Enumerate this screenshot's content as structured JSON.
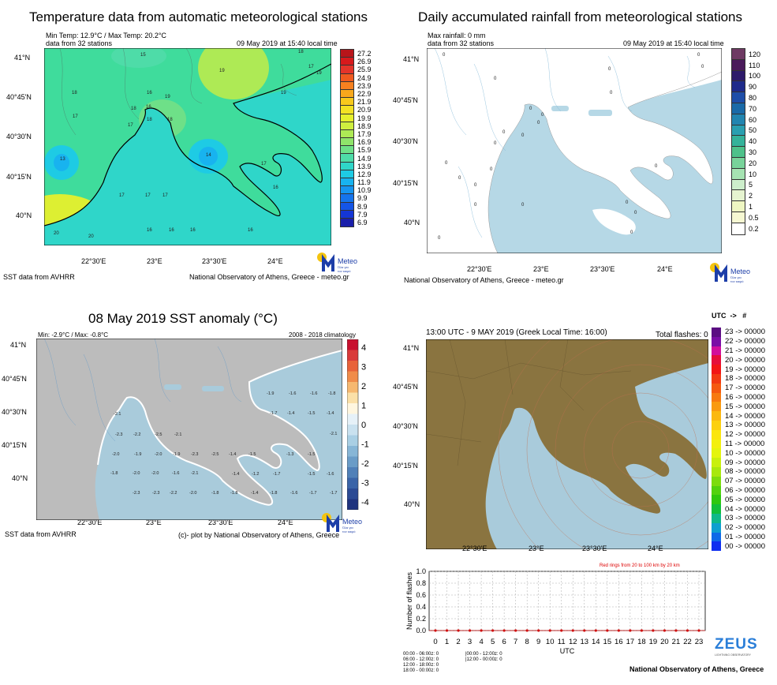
{
  "colors": {
    "sea_light": "#b6d8e6",
    "land_gray": "#bcbcbc",
    "land_brown": "#8a7440",
    "sea_gray": "#a9cbdb",
    "meteo_blue": "#1d3ea8",
    "meteo_yellow": "#f4c40f"
  },
  "panel1": {
    "title": "Temperature data from automatic meteorological stations",
    "info1": "Min Temp: 12.9°C / Max Temp: 20.2°C",
    "info2": "data from 32 stations",
    "datetime": "09 May 2019 at 15:40 local time",
    "lat_labels": [
      "41°N",
      "40°45'N",
      "40°30'N",
      "40°15'N",
      "40°N"
    ],
    "lon_labels": [
      "22°30'E",
      "23°E",
      "23°30'E",
      "24°E"
    ],
    "colorbar": [
      "27.2",
      "26.9",
      "25.9",
      "24.9",
      "23.9",
      "22.9",
      "21.9",
      "20.9",
      "19.9",
      "18.9",
      "17.9",
      "16.9",
      "15.9",
      "14.9",
      "13.9",
      "12.9",
      "11.9",
      "10.9",
      "9.9",
      "8.9",
      "7.9",
      "6.9"
    ],
    "colorbar_colors": [
      "#b8151a",
      "#d7191c",
      "#e4342a",
      "#f05a1f",
      "#f7811f",
      "#f9a81c",
      "#f8c91c",
      "#f3e123",
      "#e6ef2c",
      "#cfef3f",
      "#aeea55",
      "#8fe46a",
      "#6ee088",
      "#4edca8",
      "#2fd6c9",
      "#1ecbe4",
      "#18b3ef",
      "#1695f0",
      "#1574ec",
      "#1455e6",
      "#1436d6",
      "#1a1faa"
    ],
    "station_values": [
      "15",
      "19",
      "18",
      "17",
      "18",
      "16",
      "17",
      "19",
      "13",
      "18",
      "16",
      "18",
      "17",
      "18",
      "14",
      "17",
      "17",
      "17",
      "16",
      "16",
      "16",
      "20",
      "20",
      "19",
      "19",
      "17",
      "16",
      "16"
    ],
    "footer_left": "SST data from AVHRR",
    "footer_right": "National Observatory of Athens, Greece - meteo.gr"
  },
  "panel2": {
    "title": "Daily accumulated rainfall from meteorological stations",
    "info1": "Max rainfall: 0 mm",
    "info2": "data from 32 stations",
    "datetime": "09 May 2019 at 15:40 local time",
    "station_values": [
      "0",
      "0",
      "0",
      "0",
      "0",
      "0",
      "0",
      "0",
      "0",
      "0",
      "0",
      "0",
      "0",
      "0",
      "0",
      "0",
      "0",
      "0",
      "0",
      "0",
      "0",
      "0",
      "0"
    ],
    "lat_labels": [
      "41°N",
      "40°45'N",
      "40°30'N",
      "40°15'N",
      "40°N"
    ],
    "lon_labels": [
      "22°30'E",
      "23°E",
      "23°30'E",
      "24°E"
    ],
    "colorbar": [
      "120",
      "110",
      "100",
      "90",
      "80",
      "70",
      "60",
      "50",
      "40",
      "30",
      "20",
      "10",
      "5",
      "2",
      "1",
      "0.5",
      "0.2"
    ],
    "colorbar_colors": [
      "#6e3a63",
      "#4a1a5a",
      "#2d1a6a",
      "#1f2a8a",
      "#1e4ea8",
      "#1a6aa8",
      "#2285b0",
      "#2a9fb0",
      "#35b29a",
      "#4ec18a",
      "#78d39a",
      "#a6e3b2",
      "#cdeecb",
      "#e6f4d0",
      "#eef6c2",
      "#f6f8d2",
      "#ffffff"
    ],
    "footer_right": "National Observatory of Athens, Greece - meteo.gr"
  },
  "panel3": {
    "title": "08 May 2019 SST anomaly (°C)",
    "info_left": "Min: -2.9°C / Max: -0.8°C",
    "info_right": "2008 - 2018 climatology",
    "lat_labels": [
      "41°N",
      "40°45'N",
      "40°30'N",
      "40°15'N",
      "40°N"
    ],
    "lon_labels": [
      "22°30'E",
      "23°E",
      "23°30'E",
      "24°E"
    ],
    "colorbar": [
      "4",
      "3",
      "2",
      "1",
      "0",
      "-1",
      "-2",
      "-3",
      "-4"
    ],
    "colorbar_colors": [
      "#c8102e",
      "#d93a3a",
      "#e8623a",
      "#f08c4a",
      "#f6b870",
      "#fbe0a8",
      "#fff6df",
      "#e6f1f8",
      "#c9e1ef",
      "#a9cfe4",
      "#87b6d6",
      "#6a9cc7",
      "#5080b8",
      "#3a64a8",
      "#2b4a94",
      "#1f337e"
    ],
    "anomaly_values": [
      "-1.9",
      "-1.6",
      "-1.6",
      "-1.8",
      "-1.7",
      "-1.4",
      "-1.5",
      "-1.4",
      "-2.1",
      "-2.1",
      "-2.3",
      "-2.2",
      "-2.5",
      "-2.1",
      "-2.0",
      "-1.9",
      "-2.0",
      "-1.9",
      "-2.3",
      "-2.5",
      "-1.4",
      "-1.5",
      "-1.3",
      "-1.5",
      "-1.8",
      "-2.0",
      "-2.0",
      "-1.6",
      "-2.1",
      "-1.4",
      "-1.2",
      "-1.7",
      "-1.5",
      "-1.6",
      "-1.7",
      "-2.3",
      "-2.3",
      "-2.2",
      "-2.0",
      "-1.8",
      "-1.8",
      "-1.4",
      "-1.8",
      "-1.6",
      "-1.7"
    ],
    "footer_left": "SST data from AVHRR",
    "footer_right": "(c)- plot by National Observatory of Athens, Greece"
  },
  "panel4": {
    "header_left": "13:00 UTC -  9  MAY 2019 (Greek Local Time: 16:00)",
    "header_right": "Total flashes: 0",
    "utc_header": "UTC",
    "utc_arrow": "->",
    "utc_hash": "#",
    "lat_labels": [
      "41°N",
      "40°45'N",
      "40°30'N",
      "40°15'N",
      "40°N"
    ],
    "lon_labels": [
      "22°30'E",
      "23°E",
      "23°30'E",
      "24°E"
    ],
    "legend": [
      "23 -> 00000",
      "22 -> 00000",
      "21 -> 00000",
      "20 -> 00000",
      "19 -> 00000",
      "18 -> 00000",
      "17 -> 00000",
      "16 -> 00000",
      "15 -> 00000",
      "14 -> 00000",
      "13 -> 00000",
      "12 -> 00000",
      "11 -> 00000",
      "10 -> 00000",
      "09 -> 00000",
      "08 -> 00000",
      "07 -> 00000",
      "06 -> 00000",
      "05 -> 00000",
      "04 -> 00000",
      "03 -> 00000",
      "02 -> 00000",
      "01 -> 00000",
      "00 -> 00000"
    ],
    "legend_colors": [
      "#5a0e82",
      "#7a0ea6",
      "#d10f9c",
      "#e60e3a",
      "#f21515",
      "#f23a12",
      "#f55a10",
      "#f77a10",
      "#f99a10",
      "#fbb810",
      "#fcd00f",
      "#fbe60f",
      "#f3f00f",
      "#e4f50f",
      "#c8f00f",
      "#a8e80f",
      "#7cdc0f",
      "#52d20f",
      "#2ec80f",
      "#12bf3a",
      "#0fb88a",
      "#0f9fd0",
      "#0f6ae8",
      "#0f2ef0"
    ],
    "ring_note": "Red rings from 20 to 100 km by 20 km",
    "zeus_brand": "ZEUS",
    "zeus_sub": "LIGHTNING OBSERVATORY",
    "stats": [
      "00:00 - 06:00z: 0",
      "06:00 - 12:00z: 0",
      "12:00 - 18:00z: 0",
      "18:00 - 00:00z: 0",
      "|00:00 - 12:00z: 0",
      "|12:00 - 00:00z: 0"
    ],
    "footer_right": "National Observatory of Athens, Greece"
  },
  "logo": {
    "text": "Meteo",
    "sub1": "Όλα για",
    "sub2": "τον καιρό"
  },
  "chart_data": {
    "type": "bar",
    "xlabel": "UTC",
    "ylabel": "Number of flashes",
    "categories": [
      "0",
      "1",
      "2",
      "3",
      "4",
      "5",
      "6",
      "7",
      "8",
      "9",
      "10",
      "11",
      "12",
      "13",
      "14",
      "15",
      "16",
      "17",
      "18",
      "19",
      "20",
      "21",
      "22",
      "23"
    ],
    "values": [
      0,
      0,
      0,
      0,
      0,
      0,
      0,
      0,
      0,
      0,
      0,
      0,
      0,
      0,
      0,
      0,
      0,
      0,
      0,
      0,
      0,
      0,
      0,
      0
    ],
    "yticks": [
      "0.0",
      "0.2",
      "0.4",
      "0.6",
      "0.8",
      "1.0"
    ],
    "ylim": [
      0,
      1.0
    ]
  }
}
